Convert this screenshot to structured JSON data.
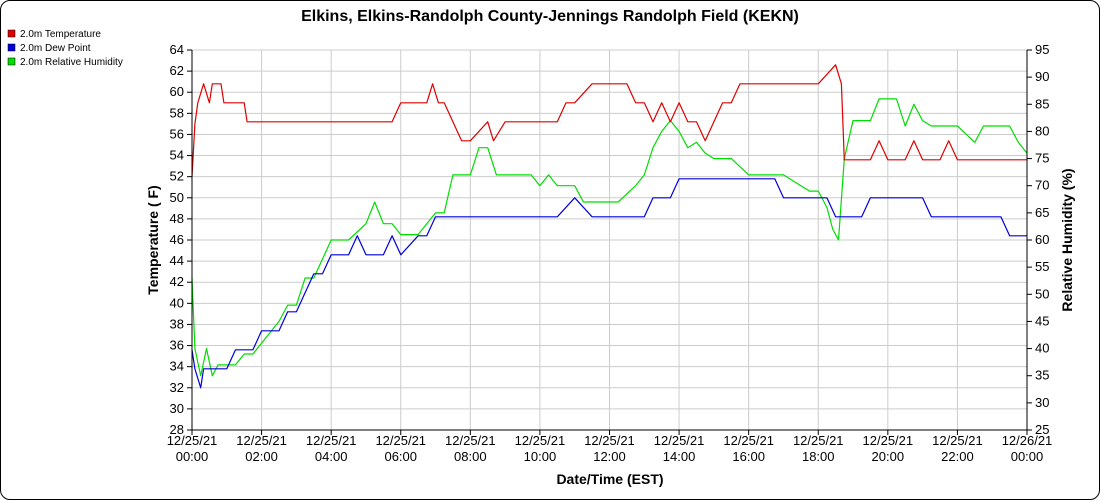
{
  "chart_data": {
    "type": "line",
    "title": "Elkins, Elkins-Randolph County-Jennings Randolph Field (KEKN)",
    "xlabel": "Date/Time (EST)",
    "ylabel_left": "Temperature ( F)",
    "ylabel_right": "Relative Humidity (%)",
    "xlim": [
      "12/25/21 00:00",
      "12/26/21 00:00"
    ],
    "ylim_left": [
      28,
      64
    ],
    "ylim_right": [
      25,
      95
    ],
    "x_tick_labels": [
      {
        "date": "12/25/21",
        "time": "00:00"
      },
      {
        "date": "12/25/21",
        "time": "02:00"
      },
      {
        "date": "12/25/21",
        "time": "04:00"
      },
      {
        "date": "12/25/21",
        "time": "06:00"
      },
      {
        "date": "12/25/21",
        "time": "08:00"
      },
      {
        "date": "12/25/21",
        "time": "10:00"
      },
      {
        "date": "12/25/21",
        "time": "12:00"
      },
      {
        "date": "12/25/21",
        "time": "14:00"
      },
      {
        "date": "12/25/21",
        "time": "16:00"
      },
      {
        "date": "12/25/21",
        "time": "18:00"
      },
      {
        "date": "12/25/21",
        "time": "20:00"
      },
      {
        "date": "12/25/21",
        "time": "22:00"
      },
      {
        "date": "12/26/21",
        "time": "00:00"
      }
    ],
    "y_ticks_left": [
      28,
      30,
      32,
      34,
      36,
      38,
      40,
      42,
      44,
      46,
      48,
      50,
      52,
      54,
      56,
      58,
      60,
      62,
      64
    ],
    "y_ticks_right": [
      25,
      30,
      35,
      40,
      45,
      50,
      55,
      60,
      65,
      70,
      75,
      80,
      85,
      90,
      95
    ],
    "grid": true,
    "legend_position": "top-left",
    "series": [
      {
        "name": "2.0m Temperature",
        "color": "#e00000",
        "axis": "left",
        "x": [
          "12/25/21 00:00",
          "12/25/21 00:05",
          "12/25/21 00:10",
          "12/25/21 00:20",
          "12/25/21 00:30",
          "12/25/21 00:35",
          "12/25/21 00:50",
          "12/25/21 00:55",
          "12/25/21 01:00",
          "12/25/21 01:30",
          "12/25/21 01:35",
          "12/25/21 02:30",
          "12/25/21 02:45",
          "12/25/21 03:00",
          "12/25/21 05:45",
          "12/25/21 06:00",
          "12/25/21 06:45",
          "12/25/21 06:55",
          "12/25/21 07:05",
          "12/25/21 07:15",
          "12/25/21 07:30",
          "12/25/21 07:45",
          "12/25/21 08:00",
          "12/25/21 08:30",
          "12/25/21 08:40",
          "12/25/21 09:00",
          "12/25/21 10:00",
          "12/25/21 10:30",
          "12/25/21 10:45",
          "12/25/21 11:00",
          "12/25/21 11:30",
          "12/25/21 11:45",
          "12/25/21 12:30",
          "12/25/21 12:45",
          "12/25/21 13:00",
          "12/25/21 13:15",
          "12/25/21 13:30",
          "12/25/21 13:45",
          "12/25/21 14:00",
          "12/25/21 14:15",
          "12/25/21 14:30",
          "12/25/21 14:45",
          "12/25/21 15:00",
          "12/25/21 15:15",
          "12/25/21 15:30",
          "12/25/21 15:45",
          "12/25/21 16:00",
          "12/25/21 17:00",
          "12/25/21 17:30",
          "12/25/21 18:00",
          "12/25/21 18:30",
          "12/25/21 18:40",
          "12/25/21 18:45",
          "12/25/21 18:50",
          "12/25/21 19:00",
          "12/25/21 19:30",
          "12/25/21 19:45",
          "12/25/21 20:00",
          "12/25/21 20:15",
          "12/25/21 20:30",
          "12/25/21 20:45",
          "12/25/21 21:00",
          "12/25/21 21:30",
          "12/25/21 21:45",
          "12/25/21 22:00",
          "12/25/21 22:30",
          "12/25/21 23:00",
          "12/25/21 23:30",
          "12/25/21 23:45",
          "12/26/21 00:00"
        ],
        "y": [
          52,
          57,
          59,
          60.8,
          59,
          60.8,
          60.8,
          59,
          59,
          59,
          57.2,
          57.2,
          57.2,
          57.2,
          57.2,
          59,
          59,
          60.8,
          59,
          59,
          57.2,
          55.4,
          55.4,
          57.2,
          55.4,
          57.2,
          57.2,
          57.2,
          59,
          59,
          60.8,
          60.8,
          60.8,
          59,
          59,
          57.2,
          59,
          57.2,
          59,
          57.2,
          57.2,
          55.4,
          57.2,
          59,
          59,
          60.8,
          60.8,
          60.8,
          60.8,
          60.8,
          62.6,
          60.8,
          53.6,
          53.6,
          53.6,
          53.6,
          55.4,
          53.6,
          53.6,
          53.6,
          55.4,
          53.6,
          53.6,
          55.4,
          53.6,
          53.6,
          53.6,
          53.6,
          53.6,
          53.6
        ]
      },
      {
        "name": "2.0m Dew Point",
        "color": "#0000dd",
        "axis": "left",
        "x": [
          "12/25/21 00:00",
          "12/25/21 00:05",
          "12/25/21 00:15",
          "12/25/21 00:20",
          "12/25/21 00:30",
          "12/25/21 01:00",
          "12/25/21 01:15",
          "12/25/21 01:30",
          "12/25/21 01:45",
          "12/25/21 02:00",
          "12/25/21 02:30",
          "12/25/21 02:45",
          "12/25/21 03:00",
          "12/25/21 03:30",
          "12/25/21 03:45",
          "12/25/21 04:00",
          "12/25/21 04:30",
          "12/25/21 04:45",
          "12/25/21 05:00",
          "12/25/21 05:30",
          "12/25/21 05:45",
          "12/25/21 06:00",
          "12/25/21 06:30",
          "12/25/21 06:45",
          "12/25/21 07:00",
          "12/25/21 07:15",
          "12/25/21 07:30",
          "12/25/21 08:00",
          "12/25/21 09:00",
          "12/25/21 10:00",
          "12/25/21 10:30",
          "12/25/21 11:00",
          "12/25/21 11:30",
          "12/25/21 12:00",
          "12/25/21 12:30",
          "12/25/21 13:00",
          "12/25/21 13:15",
          "12/25/21 13:30",
          "12/25/21 13:45",
          "12/25/21 14:00",
          "12/25/21 15:00",
          "12/25/21 16:00",
          "12/25/21 16:30",
          "12/25/21 16:45",
          "12/25/21 17:00",
          "12/25/21 17:30",
          "12/25/21 18:00",
          "12/25/21 18:15",
          "12/25/21 18:30",
          "12/25/21 18:45",
          "12/25/21 19:00",
          "12/25/21 19:15",
          "12/25/21 19:30",
          "12/25/21 20:00",
          "12/25/21 20:30",
          "12/25/21 21:00",
          "12/25/21 21:15",
          "12/25/21 21:30",
          "12/25/21 22:00",
          "12/25/21 22:30",
          "12/25/21 23:00",
          "12/25/21 23:15",
          "12/25/21 23:30",
          "12/25/21 23:45",
          "12/26/21 00:00"
        ],
        "y": [
          35.6,
          33.8,
          32,
          33.8,
          33.8,
          33.8,
          35.6,
          35.6,
          35.6,
          37.4,
          37.4,
          39.2,
          39.2,
          42.8,
          42.8,
          44.6,
          44.6,
          46.4,
          44.6,
          44.6,
          46.4,
          44.6,
          46.4,
          46.4,
          48.2,
          48.2,
          48.2,
          48.2,
          48.2,
          48.2,
          48.2,
          50,
          48.2,
          48.2,
          48.2,
          48.2,
          50,
          50,
          50,
          51.8,
          51.8,
          51.8,
          51.8,
          51.8,
          50,
          50,
          50,
          50,
          48.2,
          48.2,
          48.2,
          48.2,
          50,
          50,
          50,
          50,
          48.2,
          48.2,
          48.2,
          48.2,
          48.2,
          48.2,
          46.4,
          46.4,
          46.4
        ]
      },
      {
        "name": "2.0m Relative Humidity",
        "color": "#00dd00",
        "axis": "right",
        "x": [
          "12/25/21 00:00",
          "12/25/21 00:05",
          "12/25/21 00:15",
          "12/25/21 00:25",
          "12/25/21 00:35",
          "12/25/21 00:45",
          "12/25/21 01:00",
          "12/25/21 01:15",
          "12/25/21 01:30",
          "12/25/21 01:45",
          "12/25/21 02:00",
          "12/25/21 02:30",
          "12/25/21 02:45",
          "12/25/21 03:00",
          "12/25/21 03:15",
          "12/25/21 03:30",
          "12/25/21 04:00",
          "12/25/21 04:30",
          "12/25/21 05:00",
          "12/25/21 05:15",
          "12/25/21 05:30",
          "12/25/21 05:45",
          "12/25/21 06:00",
          "12/25/21 06:30",
          "12/25/21 06:45",
          "12/25/21 07:00",
          "12/25/21 07:15",
          "12/25/21 07:30",
          "12/25/21 08:00",
          "12/25/21 08:15",
          "12/25/21 08:30",
          "12/25/21 08:45",
          "12/25/21 09:00",
          "12/25/21 09:45",
          "12/25/21 10:00",
          "12/25/21 10:15",
          "12/25/21 10:30",
          "12/25/21 11:00",
          "12/25/21 11:15",
          "12/25/21 11:30",
          "12/25/21 12:00",
          "12/25/21 12:15",
          "12/25/21 12:45",
          "12/25/21 13:00",
          "12/25/21 13:15",
          "12/25/21 13:30",
          "12/25/21 13:45",
          "12/25/21 14:00",
          "12/25/21 14:15",
          "12/25/21 14:30",
          "12/25/21 14:45",
          "12/25/21 15:00",
          "12/25/21 15:30",
          "12/25/21 16:00",
          "12/25/21 16:30",
          "12/25/21 16:45",
          "12/25/21 17:00",
          "12/25/21 17:30",
          "12/25/21 17:45",
          "12/25/21 18:00",
          "12/25/21 18:15",
          "12/25/21 18:25",
          "12/25/21 18:35",
          "12/25/21 18:45",
          "12/25/21 19:00",
          "12/25/21 19:15",
          "12/25/21 19:30",
          "12/25/21 19:45",
          "12/25/21 20:00",
          "12/25/21 20:15",
          "12/25/21 20:30",
          "12/25/21 20:45",
          "12/25/21 21:00",
          "12/25/21 21:15",
          "12/25/21 21:30",
          "12/25/21 22:00",
          "12/25/21 22:30",
          "12/25/21 22:45",
          "12/25/21 23:00",
          "12/25/21 23:15",
          "12/25/21 23:30",
          "12/25/21 23:45",
          "12/26/21 00:00"
        ],
        "y": [
          53,
          40,
          35,
          40,
          35,
          37,
          37,
          37,
          39,
          39,
          41,
          45,
          48,
          48,
          53,
          53,
          60,
          60,
          63,
          67,
          63,
          63,
          61,
          61,
          63,
          65,
          65,
          72,
          72,
          77,
          77,
          72,
          72,
          72,
          70,
          72,
          70,
          70,
          67,
          67,
          67,
          67,
          70,
          72,
          77,
          80,
          82,
          80,
          77,
          78,
          76,
          75,
          75,
          72,
          72,
          72,
          72,
          70,
          69,
          69,
          66,
          62,
          60,
          75,
          82,
          82,
          82,
          86,
          86,
          86,
          81,
          85,
          82,
          81,
          81,
          81,
          78,
          81,
          81,
          81,
          81,
          78,
          76
        ]
      }
    ]
  }
}
